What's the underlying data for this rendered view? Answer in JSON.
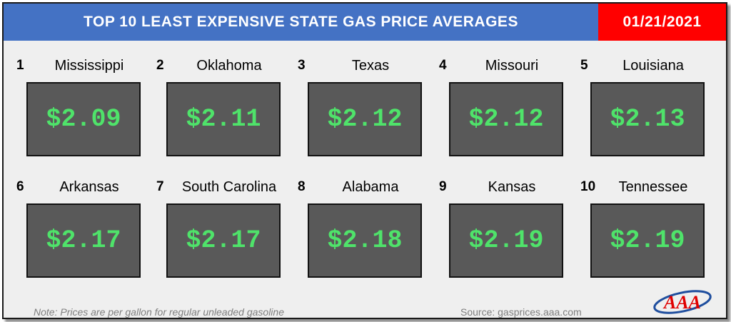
{
  "header": {
    "title": "TOP 10 LEAST EXPENSIVE STATE GAS PRICE AVERAGES",
    "date": "01/21/2021"
  },
  "states": [
    {
      "rank": "1",
      "name": "Mississippi",
      "price": "$2.09"
    },
    {
      "rank": "2",
      "name": "Oklahoma",
      "price": "$2.11"
    },
    {
      "rank": "3",
      "name": "Texas",
      "price": "$2.12"
    },
    {
      "rank": "4",
      "name": "Missouri",
      "price": "$2.12"
    },
    {
      "rank": "5",
      "name": "Louisiana",
      "price": "$2.13"
    },
    {
      "rank": "6",
      "name": "Arkansas",
      "price": "$2.17"
    },
    {
      "rank": "7",
      "name": "South Carolina",
      "price": "$2.17"
    },
    {
      "rank": "8",
      "name": "Alabama",
      "price": "$2.18"
    },
    {
      "rank": "9",
      "name": "Kansas",
      "price": "$2.19"
    },
    {
      "rank": "10",
      "name": "Tennessee",
      "price": "$2.19"
    }
  ],
  "footer": {
    "note": "Note: Prices are per gallon for regular unleaded gasoline",
    "source": "Source: gasprices.aaa.com"
  },
  "logo": {
    "icon": "aaa-logo-icon",
    "text": "AAA"
  },
  "colors": {
    "title_bg": "#4472c4",
    "date_bg": "#ff0000",
    "price_text": "#4fe36a",
    "price_box": "#595959"
  }
}
